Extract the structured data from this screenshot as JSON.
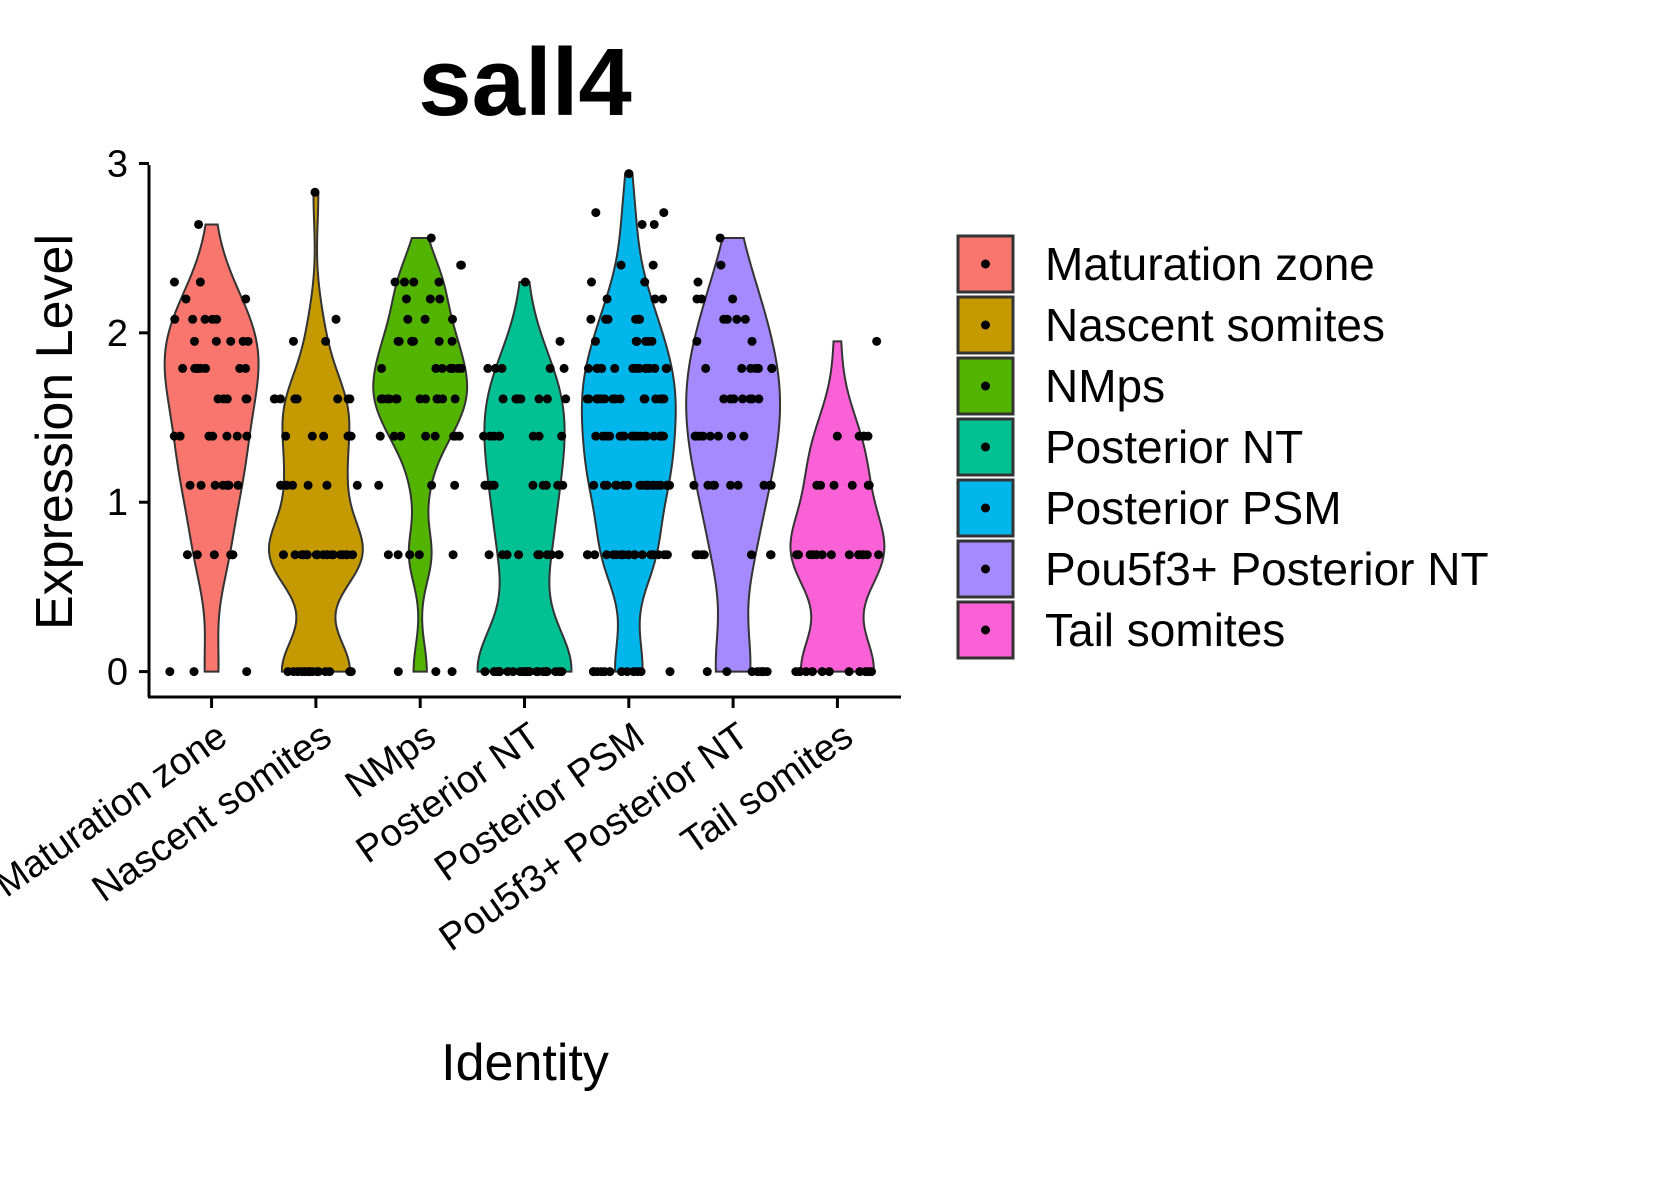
{
  "chart_data": {
    "type": "violin",
    "title": "sall4",
    "x_label": "Identity",
    "y_label": "Expression Level",
    "categories": [
      "Maturation zone",
      "Nascent somites",
      "NMps",
      "Posterior NT",
      "Posterior PSM",
      "Pou5f3+ Posterior NT",
      "Tail somites"
    ],
    "ylim": [
      -0.15,
      3.05
    ],
    "yticks": [
      0,
      1,
      2,
      3
    ],
    "legend": "right",
    "series": [
      {
        "name": "Maturation zone",
        "color": "#f8766d",
        "values": [
          0,
          0,
          0,
          0.69,
          0.69,
          0.69,
          0.69,
          0.69,
          0.69,
          1.1,
          1.1,
          1.1,
          1.1,
          1.1,
          1.1,
          1.1,
          1.1,
          1.39,
          1.39,
          1.39,
          1.39,
          1.39,
          1.39,
          1.39,
          1.61,
          1.61,
          1.61,
          1.61,
          1.61,
          1.79,
          1.79,
          1.79,
          1.79,
          1.79,
          1.79,
          1.79,
          1.79,
          1.95,
          1.95,
          1.95,
          1.95,
          1.95,
          2.08,
          2.08,
          2.08,
          2.08,
          2.08,
          2.2,
          2.2,
          2.3,
          2.3,
          2.64
        ]
      },
      {
        "name": "Nascent somites",
        "color": "#c49a00",
        "values": [
          0,
          0,
          0,
          0,
          0,
          0,
          0,
          0,
          0,
          0,
          0,
          0,
          0,
          0,
          0.69,
          0.69,
          0.69,
          0.69,
          0.69,
          0.69,
          0.69,
          0.69,
          0.69,
          0.69,
          0.69,
          0.69,
          0.69,
          0.69,
          0.69,
          0.69,
          0.69,
          0.69,
          1.1,
          1.1,
          1.1,
          1.1,
          1.1,
          1.1,
          1.1,
          1.1,
          1.39,
          1.39,
          1.39,
          1.39,
          1.39,
          1.39,
          1.61,
          1.61,
          1.61,
          1.61,
          1.61,
          1.61,
          1.61,
          1.61,
          1.95,
          1.95,
          2.08,
          2.83
        ]
      },
      {
        "name": "NMps",
        "color": "#53b400",
        "values": [
          0,
          0,
          0,
          0.69,
          0.69,
          0.69,
          0.69,
          0.69,
          1.1,
          1.1,
          1.1,
          1.39,
          1.39,
          1.39,
          1.39,
          1.39,
          1.39,
          1.39,
          1.39,
          1.61,
          1.61,
          1.61,
          1.61,
          1.61,
          1.61,
          1.61,
          1.61,
          1.61,
          1.61,
          1.61,
          1.61,
          1.79,
          1.79,
          1.79,
          1.79,
          1.79,
          1.79,
          1.79,
          1.79,
          1.95,
          1.95,
          1.95,
          1.95,
          1.95,
          1.95,
          1.95,
          2.08,
          2.08,
          2.08,
          2.2,
          2.2,
          2.2,
          2.3,
          2.3,
          2.3,
          2.3,
          2.4,
          2.4,
          2.56
        ]
      },
      {
        "name": "Posterior NT",
        "color": "#00c094",
        "values": [
          0,
          0,
          0,
          0,
          0,
          0,
          0,
          0,
          0,
          0,
          0,
          0,
          0,
          0,
          0,
          0,
          0,
          0,
          0,
          0,
          0,
          0,
          0,
          0,
          0,
          0.69,
          0.69,
          0.69,
          0.69,
          0.69,
          0.69,
          0.69,
          0.69,
          0.69,
          0.69,
          1.1,
          1.1,
          1.1,
          1.1,
          1.1,
          1.1,
          1.1,
          1.1,
          1.1,
          1.1,
          1.39,
          1.39,
          1.39,
          1.39,
          1.39,
          1.39,
          1.39,
          1.39,
          1.61,
          1.61,
          1.61,
          1.61,
          1.61,
          1.61,
          1.61,
          1.61,
          1.79,
          1.79,
          1.79,
          1.79,
          1.79,
          1.95,
          2.3
        ]
      },
      {
        "name": "Posterior PSM",
        "color": "#00b6eb",
        "values": [
          0,
          0,
          0,
          0,
          0,
          0,
          0,
          0,
          0,
          0,
          0,
          0,
          0.69,
          0.69,
          0.69,
          0.69,
          0.69,
          0.69,
          0.69,
          0.69,
          0.69,
          0.69,
          0.69,
          0.69,
          0.69,
          0.69,
          0.69,
          0.69,
          0.69,
          0.69,
          0.69,
          0.69,
          1.1,
          1.1,
          1.1,
          1.1,
          1.1,
          1.1,
          1.1,
          1.1,
          1.1,
          1.1,
          1.1,
          1.1,
          1.1,
          1.1,
          1.1,
          1.1,
          1.1,
          1.1,
          1.1,
          1.1,
          1.1,
          1.1,
          1.39,
          1.39,
          1.39,
          1.39,
          1.39,
          1.39,
          1.39,
          1.39,
          1.39,
          1.39,
          1.39,
          1.39,
          1.39,
          1.39,
          1.39,
          1.39,
          1.39,
          1.39,
          1.61,
          1.61,
          1.61,
          1.61,
          1.61,
          1.61,
          1.61,
          1.61,
          1.61,
          1.61,
          1.61,
          1.61,
          1.61,
          1.61,
          1.61,
          1.79,
          1.79,
          1.79,
          1.79,
          1.79,
          1.79,
          1.79,
          1.79,
          1.79,
          1.79,
          1.79,
          1.79,
          1.79,
          1.79,
          1.95,
          1.95,
          1.95,
          1.95,
          1.95,
          1.95,
          2.08,
          2.08,
          2.08,
          2.08,
          2.08,
          2.08,
          2.08,
          2.08,
          2.2,
          2.2,
          2.2,
          2.3,
          2.3,
          2.4,
          2.4,
          2.64,
          2.64,
          2.71,
          2.71,
          2.94
        ]
      },
      {
        "name": "Pou5f3+ Posterior NT",
        "color": "#a58aff",
        "values": [
          0,
          0,
          0,
          0,
          0,
          0,
          0,
          0,
          0.69,
          0.69,
          0.69,
          0.69,
          0.69,
          0.69,
          0.69,
          1.1,
          1.1,
          1.1,
          1.1,
          1.1,
          1.1,
          1.1,
          1.1,
          1.1,
          1.39,
          1.39,
          1.39,
          1.39,
          1.39,
          1.39,
          1.39,
          1.39,
          1.61,
          1.61,
          1.61,
          1.61,
          1.61,
          1.61,
          1.61,
          1.79,
          1.79,
          1.79,
          1.79,
          1.79,
          1.79,
          1.79,
          1.95,
          1.95,
          2.08,
          2.08,
          2.08,
          2.08,
          2.2,
          2.2,
          2.2,
          2.3,
          2.4,
          2.56
        ]
      },
      {
        "name": "Tail somites",
        "color": "#fb61d7",
        "values": [
          0,
          0,
          0,
          0,
          0,
          0,
          0,
          0,
          0,
          0,
          0,
          0,
          0.69,
          0.69,
          0.69,
          0.69,
          0.69,
          0.69,
          0.69,
          0.69,
          0.69,
          0.69,
          0.69,
          0.69,
          0.69,
          0.69,
          1.1,
          1.1,
          1.1,
          1.1,
          1.1,
          1.1,
          1.39,
          1.39,
          1.39,
          1.39,
          1.39,
          1.95
        ]
      }
    ]
  }
}
